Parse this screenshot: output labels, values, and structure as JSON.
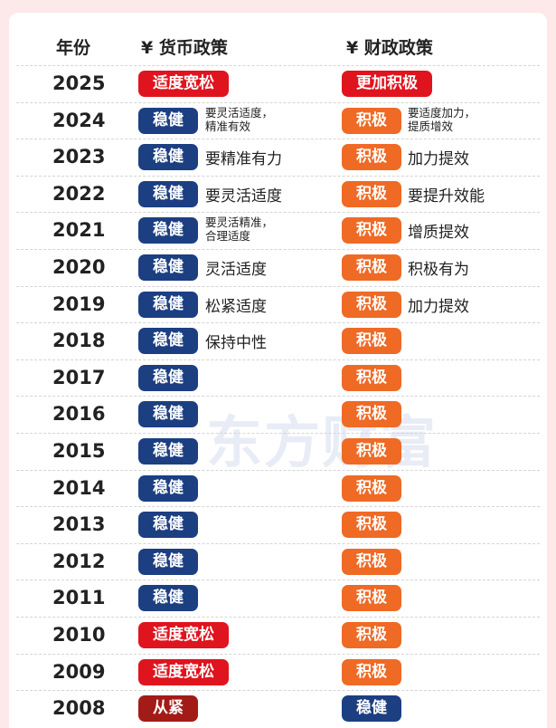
{
  "headers": {
    "year": "年份",
    "monetary": "¥ 货币政策",
    "fiscal": "¥ 财政政策"
  },
  "watermark": "东方财富",
  "colors": {
    "stable_blue": "#1c3f82",
    "loose_red": "#e0141e",
    "tight_darkred": "#a31b17",
    "active_orange": "#ef6a25",
    "more_active_red": "#e0141e",
    "background": "#fde9e9"
  },
  "rows": [
    {
      "year": "2025",
      "monetary": "适度宽松",
      "monetary_note": "",
      "fiscal": "更加积极",
      "fiscal_note": ""
    },
    {
      "year": "2024",
      "monetary": "稳健",
      "monetary_note": "要灵活适度，\n精准有效",
      "fiscal": "积极",
      "fiscal_note": "要适度加力，\n提质增效"
    },
    {
      "year": "2023",
      "monetary": "稳健",
      "monetary_note": "要精准有力",
      "fiscal": "积极",
      "fiscal_note": "加力提效"
    },
    {
      "year": "2022",
      "monetary": "稳健",
      "monetary_note": "要灵活适度",
      "fiscal": "积极",
      "fiscal_note": "要提升效能"
    },
    {
      "year": "2021",
      "monetary": "稳健",
      "monetary_note": "要灵活精准，\n合理适度",
      "fiscal": "积极",
      "fiscal_note": "增质提效"
    },
    {
      "year": "2020",
      "monetary": "稳健",
      "monetary_note": "灵活适度",
      "fiscal": "积极",
      "fiscal_note": "积极有为"
    },
    {
      "year": "2019",
      "monetary": "稳健",
      "monetary_note": "松紧适度",
      "fiscal": "积极",
      "fiscal_note": "加力提效"
    },
    {
      "year": "2018",
      "monetary": "稳健",
      "monetary_note": "保持中性",
      "fiscal": "积极",
      "fiscal_note": ""
    },
    {
      "year": "2017",
      "monetary": "稳健",
      "monetary_note": "",
      "fiscal": "积极",
      "fiscal_note": ""
    },
    {
      "year": "2016",
      "monetary": "稳健",
      "monetary_note": "",
      "fiscal": "积极",
      "fiscal_note": ""
    },
    {
      "year": "2015",
      "monetary": "稳健",
      "monetary_note": "",
      "fiscal": "积极",
      "fiscal_note": ""
    },
    {
      "year": "2014",
      "monetary": "稳健",
      "monetary_note": "",
      "fiscal": "积极",
      "fiscal_note": ""
    },
    {
      "year": "2013",
      "monetary": "稳健",
      "monetary_note": "",
      "fiscal": "积极",
      "fiscal_note": ""
    },
    {
      "year": "2012",
      "monetary": "稳健",
      "monetary_note": "",
      "fiscal": "积极",
      "fiscal_note": ""
    },
    {
      "year": "2011",
      "monetary": "稳健",
      "monetary_note": "",
      "fiscal": "积极",
      "fiscal_note": ""
    },
    {
      "year": "2010",
      "monetary": "适度宽松",
      "monetary_note": "",
      "fiscal": "积极",
      "fiscal_note": ""
    },
    {
      "year": "2009",
      "monetary": "适度宽松",
      "monetary_note": "",
      "fiscal": "积极",
      "fiscal_note": ""
    },
    {
      "year": "2008",
      "monetary": "从紧",
      "monetary_note": "",
      "fiscal": "稳健",
      "fiscal_note": ""
    }
  ]
}
